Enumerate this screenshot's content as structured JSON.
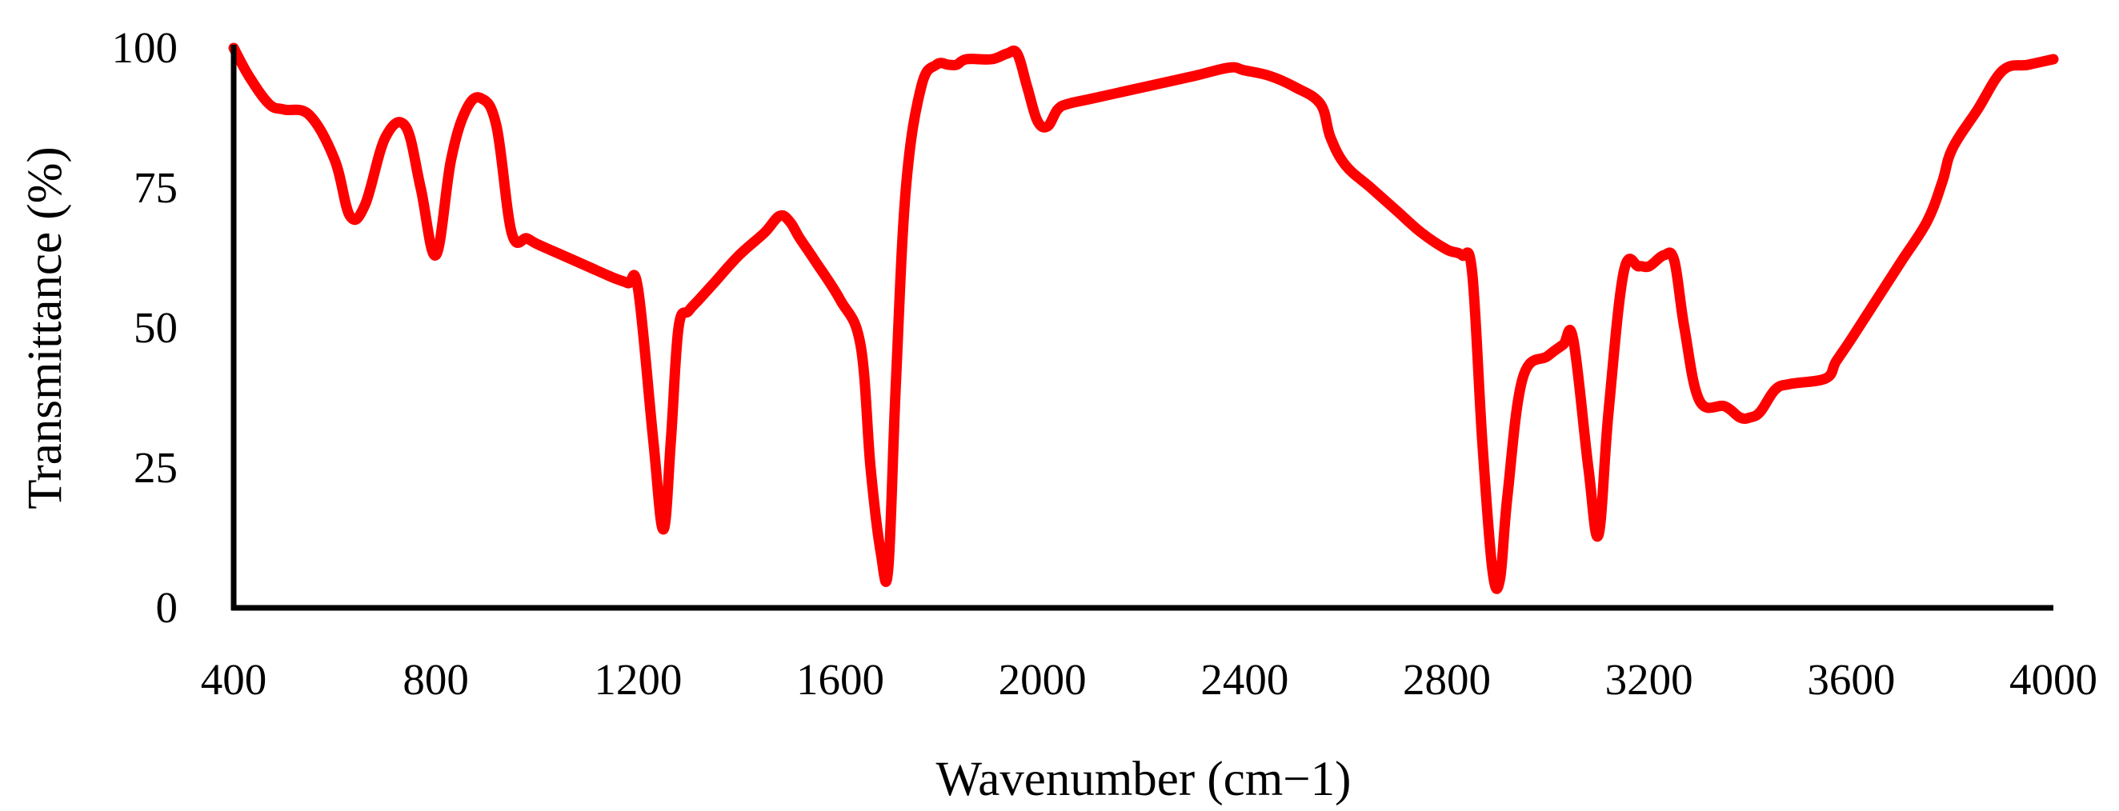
{
  "chart_data": {
    "type": "line",
    "title": "",
    "xlabel": "Wavenumber (cm−1)",
    "ylabel": "Transmittance (%)",
    "xlim": [
      400,
      4000
    ],
    "ylim": [
      0,
      100
    ],
    "x_ticks": [
      400,
      800,
      1200,
      1600,
      2000,
      2400,
      2800,
      3200,
      3600,
      4000
    ],
    "y_ticks": [
      0,
      25,
      50,
      75,
      100
    ],
    "x_tick_labels": [
      "400",
      "800",
      "1200",
      "1600",
      "2000",
      "2400",
      "2800",
      "3200",
      "3600",
      "4000"
    ],
    "y_tick_labels": [
      "0",
      "25",
      "50",
      "75",
      "100"
    ],
    "grid": false,
    "legend": "none",
    "colors": {
      "series": "#ff0000",
      "axis": "#000000",
      "text": "#000000"
    },
    "series": [
      {
        "name": "Transmittance",
        "color": "#ff0000",
        "x": [
          400,
          430,
          470,
          500,
          550,
          600,
          630,
          660,
          700,
          740,
          770,
          800,
          830,
          860,
          890,
          920,
          950,
          980,
          1000,
          1050,
          1100,
          1150,
          1180,
          1200,
          1230,
          1250,
          1265,
          1280,
          1300,
          1320,
          1350,
          1400,
          1450,
          1480,
          1500,
          1520,
          1550,
          1600,
          1640,
          1660,
          1680,
          1695,
          1710,
          1730,
          1760,
          1790,
          1815,
          1830,
          1850,
          1900,
          1930,
          1950,
          1970,
          1990,
          2010,
          2030,
          2050,
          2100,
          2200,
          2300,
          2370,
          2400,
          2450,
          2500,
          2550,
          2570,
          2600,
          2650,
          2700,
          2750,
          2800,
          2830,
          2850,
          2870,
          2890,
          2905,
          2920,
          2950,
          3000,
          3030,
          3050,
          3080,
          3100,
          3120,
          3150,
          3180,
          3200,
          3230,
          3250,
          3270,
          3300,
          3350,
          3380,
          3400,
          3420,
          3450,
          3480,
          3550,
          3570,
          3600,
          3650,
          3700,
          3750,
          3780,
          3800,
          3850,
          3900,
          3950,
          4000
        ],
        "values": [
          100,
          95,
          90,
          89,
          88,
          80,
          70,
          72,
          84,
          86,
          75,
          63,
          80,
          89,
          91,
          86,
          67,
          66,
          65,
          63,
          61,
          59,
          58,
          57,
          30,
          14,
          30,
          50,
          53,
          55,
          58,
          63,
          67,
          70,
          69,
          66,
          62,
          55,
          47,
          25,
          10,
          7,
          40,
          75,
          93,
          97,
          97,
          97,
          98,
          98,
          99,
          99,
          93,
          87,
          86,
          89,
          90,
          91,
          93,
          95,
          96.5,
          96,
          95,
          93,
          90,
          84,
          79,
          75,
          71,
          67,
          64,
          63,
          60,
          30,
          7,
          5,
          20,
          41,
          45,
          47,
          48,
          25,
          13,
          35,
          60,
          61,
          61,
          63,
          62,
          50,
          37,
          36,
          34,
          34,
          35,
          39,
          40,
          41,
          44,
          48,
          55,
          62,
          69,
          76,
          82,
          89,
          96,
          97,
          98
        ]
      }
    ]
  }
}
